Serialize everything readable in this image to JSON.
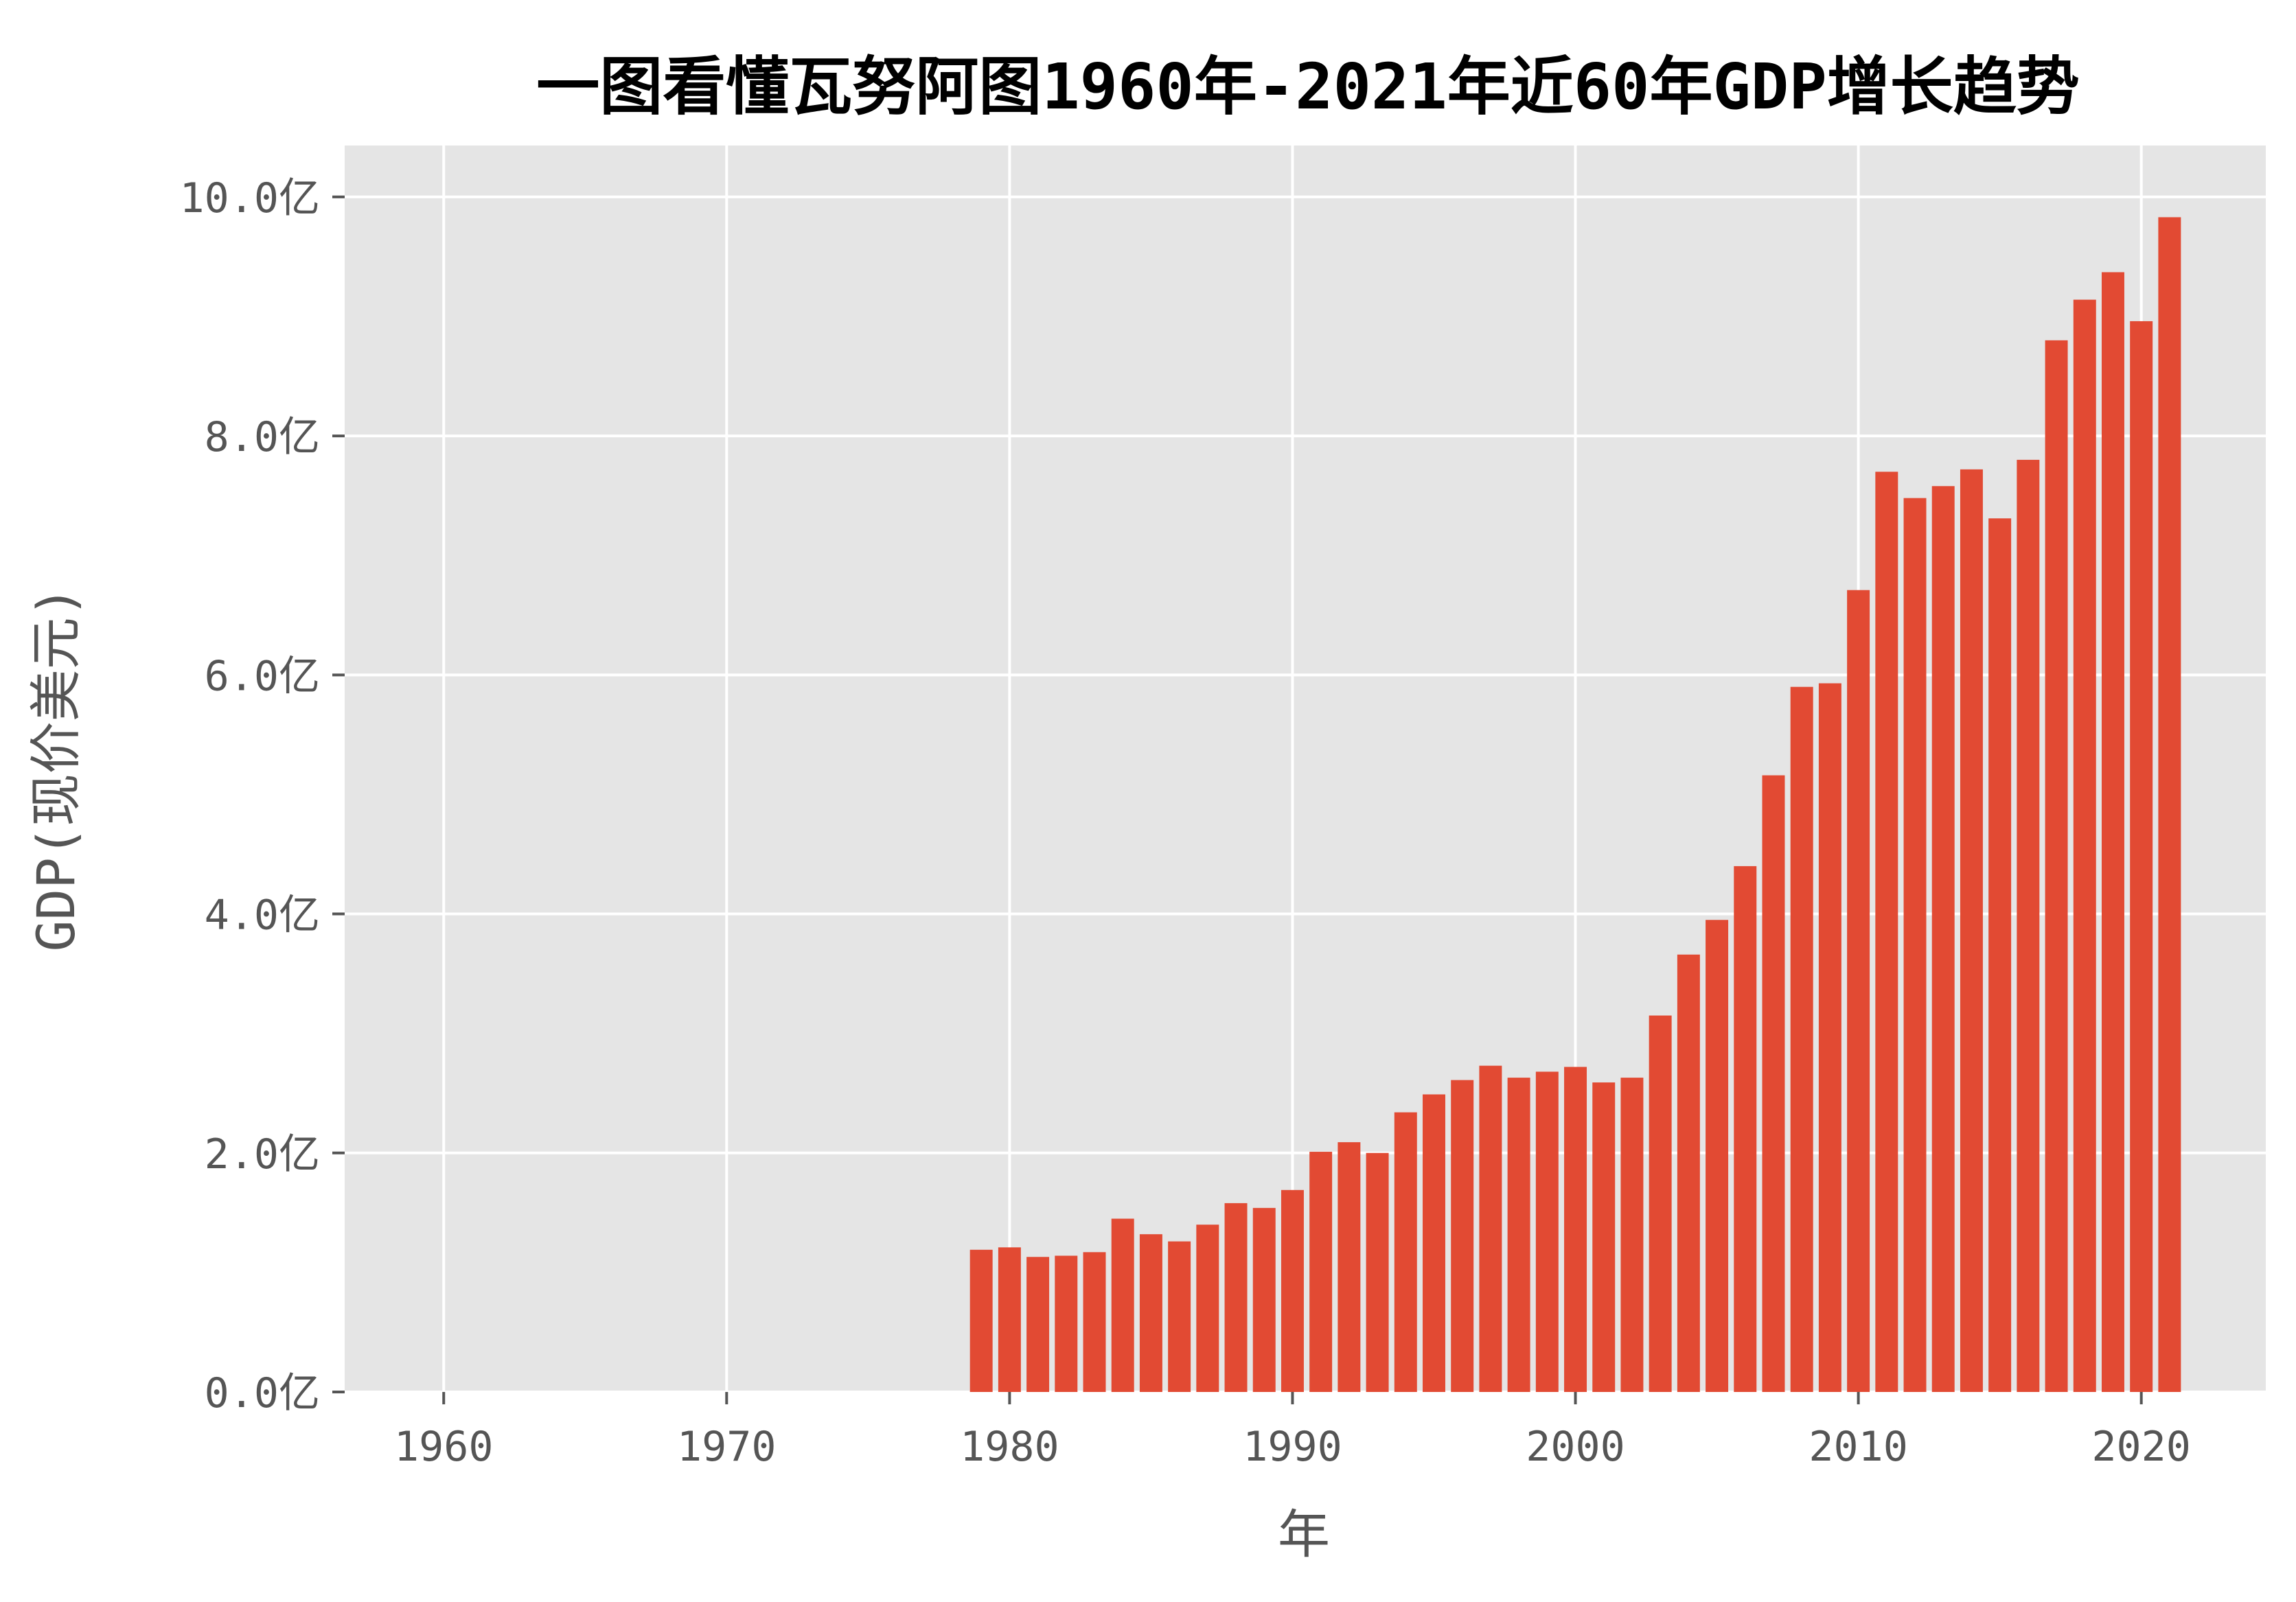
{
  "chart_data": {
    "type": "bar",
    "title": "一图看懂瓦努阿图1960年-2021年近60年GDP增长趋势",
    "xlabel": "年",
    "ylabel": "GDP(现价美元)",
    "x": [
      1979,
      1980,
      1981,
      1982,
      1983,
      1984,
      1985,
      1986,
      1987,
      1988,
      1989,
      1990,
      1991,
      1992,
      1993,
      1994,
      1995,
      1996,
      1997,
      1998,
      1999,
      2000,
      2001,
      2002,
      2003,
      2004,
      2005,
      2006,
      2007,
      2008,
      2009,
      2010,
      2011,
      2012,
      2013,
      2014,
      2015,
      2016,
      2017,
      2018,
      2019,
      2020,
      2021
    ],
    "values": [
      1.19,
      1.21,
      1.13,
      1.14,
      1.17,
      1.45,
      1.32,
      1.26,
      1.4,
      1.58,
      1.54,
      1.69,
      2.01,
      2.09,
      2.0,
      2.34,
      2.49,
      2.61,
      2.73,
      2.63,
      2.68,
      2.72,
      2.59,
      2.63,
      3.15,
      3.66,
      3.95,
      4.4,
      5.16,
      5.9,
      5.93,
      6.71,
      7.7,
      7.48,
      7.58,
      7.72,
      7.31,
      7.8,
      8.8,
      9.14,
      9.37,
      8.96,
      9.83
    ],
    "unit": "亿",
    "xticks": [
      "1960",
      "1970",
      "1980",
      "1990",
      "2000",
      "2010",
      "2020"
    ],
    "yticks": [
      "0.0亿",
      "2.0亿",
      "4.0亿",
      "6.0亿",
      "8.0亿",
      "10.0亿"
    ],
    "xlim": [
      1956.5,
      2024.4
    ],
    "ylim": [
      0,
      10.43
    ],
    "grid": true,
    "colors": {
      "bar": "#E24A33",
      "plot_background": "#E5E5E5",
      "grid": "#FFFFFF"
    }
  }
}
